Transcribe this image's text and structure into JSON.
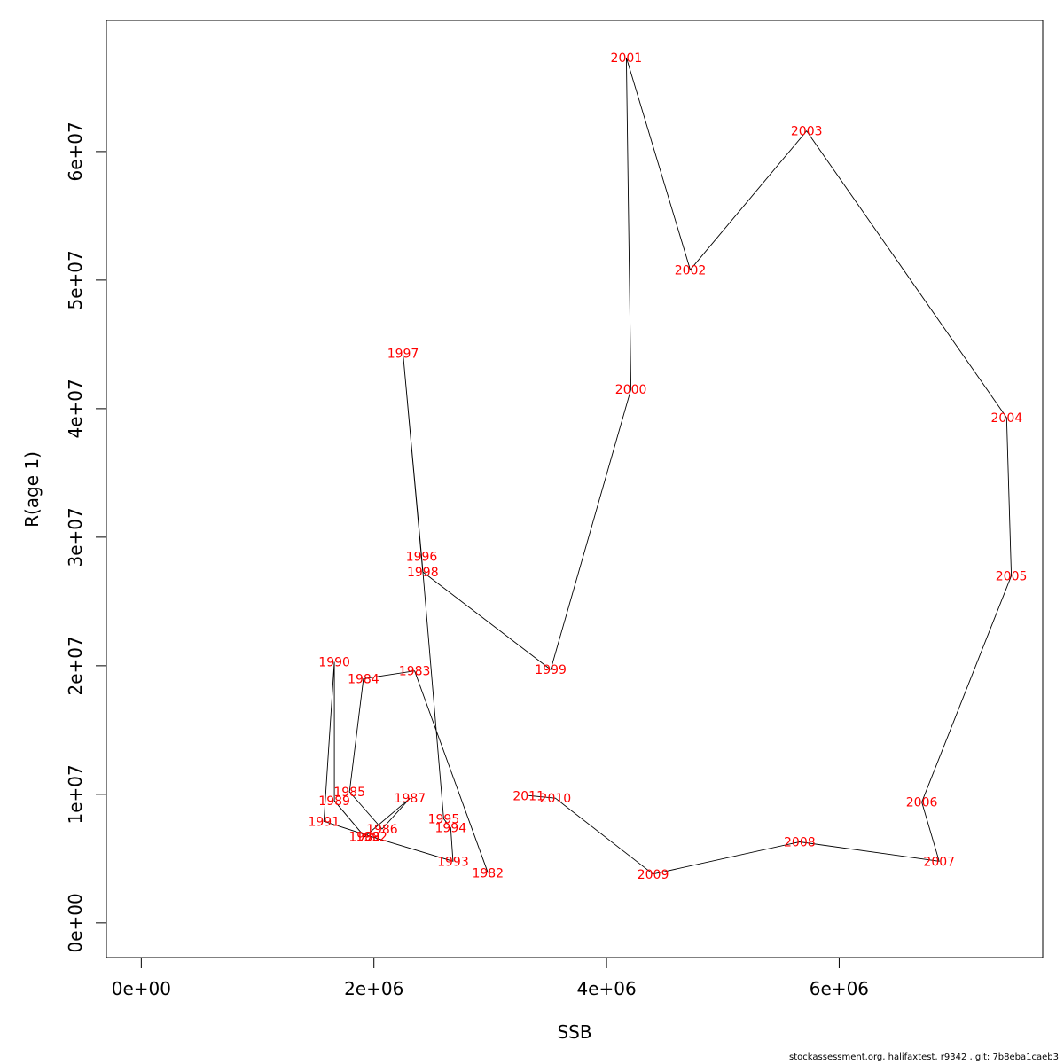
{
  "chart_data": {
    "type": "line",
    "xlabel": "SSB",
    "ylabel": "R(age 1)",
    "xlim": [
      -300000,
      7750000
    ],
    "ylim": [
      -2700000,
      70200000
    ],
    "x_ticks": [
      0,
      2000000,
      4000000,
      6000000
    ],
    "x_tick_labels": [
      "0e+00",
      "2e+06",
      "4e+06",
      "6e+06"
    ],
    "y_ticks": [
      0,
      10000000,
      20000000,
      30000000,
      40000000,
      50000000,
      60000000
    ],
    "y_tick_labels": [
      "0e+00",
      "1e+07",
      "2e+07",
      "3e+07",
      "4e+07",
      "5e+07",
      "6e+07"
    ],
    "grid": false,
    "line_color": "#000000",
    "label_color": "#ff0000",
    "series": [
      {
        "points": [
          {
            "year": "1982",
            "x": 2980000,
            "y": 3900000
          },
          {
            "year": "1983",
            "x": 2350000,
            "y": 19600000
          },
          {
            "year": "1984",
            "x": 1910000,
            "y": 19000000
          },
          {
            "year": "1985",
            "x": 1790000,
            "y": 10200000
          },
          {
            "year": "1986",
            "x": 2070000,
            "y": 7300000
          },
          {
            "year": "1987",
            "x": 2310000,
            "y": 9700000
          },
          {
            "year": "1988",
            "x": 1920000,
            "y": 6700000
          },
          {
            "year": "1989",
            "x": 1660000,
            "y": 9500000
          },
          {
            "year": "1990",
            "x": 1660000,
            "y": 20300000
          },
          {
            "year": "1991",
            "x": 1570000,
            "y": 7900000
          },
          {
            "year": "1992",
            "x": 1980000,
            "y": 6700000
          },
          {
            "year": "1993",
            "x": 2680000,
            "y": 4800000
          },
          {
            "year": "1994",
            "x": 2660000,
            "y": 7400000
          },
          {
            "year": "1995",
            "x": 2600000,
            "y": 8100000
          },
          {
            "year": "1996",
            "x": 2410000,
            "y": 28500000
          },
          {
            "year": "1997",
            "x": 2250000,
            "y": 44300000
          },
          {
            "year": "1998",
            "x": 2420000,
            "y": 27300000
          },
          {
            "year": "1999",
            "x": 3520000,
            "y": 19700000
          },
          {
            "year": "2000",
            "x": 4210000,
            "y": 41500000
          },
          {
            "year": "2001",
            "x": 4170000,
            "y": 67300000
          },
          {
            "year": "2002",
            "x": 4720000,
            "y": 50800000
          },
          {
            "year": "2003",
            "x": 5720000,
            "y": 61600000
          },
          {
            "year": "2004",
            "x": 7440000,
            "y": 39300000
          },
          {
            "year": "2005",
            "x": 7480000,
            "y": 27000000
          },
          {
            "year": "2006",
            "x": 6710000,
            "y": 9400000
          },
          {
            "year": "2007",
            "x": 6860000,
            "y": 4800000
          },
          {
            "year": "2008",
            "x": 5660000,
            "y": 6300000
          },
          {
            "year": "2009",
            "x": 4400000,
            "y": 3800000
          },
          {
            "year": "2010",
            "x": 3560000,
            "y": 9700000
          },
          {
            "year": "2011",
            "x": 3330000,
            "y": 9900000
          }
        ]
      }
    ]
  },
  "footer": "stockassessment.org, halifaxtest, r9342 , git: 7b8eba1caeb3"
}
